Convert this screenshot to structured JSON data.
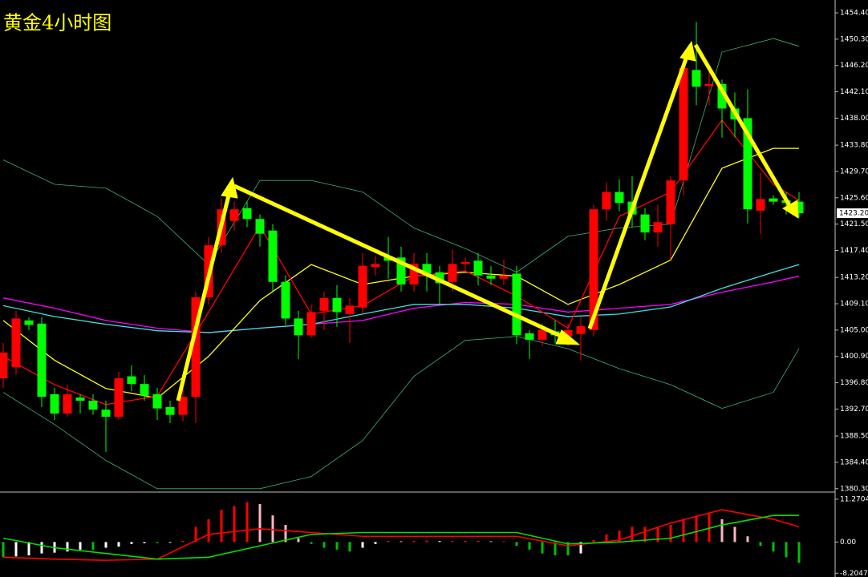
{
  "chart_data": [
    {
      "type": "candlestick",
      "title": "黄金4小时图",
      "up_color": "#ff0000",
      "down_color": "#00ff00",
      "open": [
        1397.5,
        1399.2,
        1406.5,
        1406,
        1395,
        1392,
        1394.5,
        1394,
        1392.6,
        1391.5,
        1397.8,
        1396.6,
        1395,
        1393,
        1391.8,
        1394.6,
        1410.1,
        1418.2,
        1422,
        1424,
        1422.3,
        1420.5,
        1412.5,
        1406.8,
        1404.2,
        1408,
        1410,
        1407.5,
        1408.5,
        1414.8,
        1416.5,
        1416.3,
        1412.1,
        1415.3,
        1414,
        1412.5,
        1415.3,
        1415.8,
        1413.5,
        1413,
        1413.8,
        1404.5,
        1403.5,
        1404.8,
        1404,
        1404.4,
        1405,
        1423.8,
        1426.5,
        1425,
        1423,
        1420.2,
        1421.5,
        1428.3,
        1445.5,
        1443,
        1443.3,
        1439.5,
        1438,
        1423.6,
        1425.5,
        1425.2,
        1425
      ],
      "high": [
        1403,
        1408,
        1407,
        1407,
        1396,
        1396.5,
        1395,
        1395,
        1394,
        1398.5,
        1399.5,
        1398,
        1396,
        1394,
        1396,
        1411,
        1419.5,
        1425.5,
        1425,
        1425,
        1423,
        1421.5,
        1413.5,
        1408,
        1409,
        1411,
        1412,
        1410,
        1417,
        1416.5,
        1419.5,
        1418,
        1417,
        1417,
        1415,
        1417.5,
        1416.3,
        1417,
        1415,
        1416,
        1415,
        1405,
        1406,
        1406.5,
        1406,
        1407,
        1424.5,
        1428,
        1428.5,
        1429,
        1424,
        1424.5,
        1429,
        1448,
        1453,
        1446,
        1444,
        1442,
        1442.5,
        1429.5,
        1426,
        1426.5,
        1426.5
      ],
      "low": [
        1396,
        1398,
        1405,
        1393,
        1391,
        1391.5,
        1392,
        1391.8,
        1386,
        1391,
        1395.5,
        1394,
        1391,
        1390.5,
        1390.8,
        1390.5,
        1409,
        1417,
        1420.5,
        1421,
        1418,
        1411,
        1405.8,
        1400.5,
        1403.8,
        1405,
        1405.5,
        1403,
        1407.5,
        1413.5,
        1413,
        1411,
        1411,
        1411,
        1409,
        1411,
        1414,
        1412,
        1412,
        1412,
        1402.8,
        1400.5,
        1402.5,
        1403,
        1402.5,
        1400.3,
        1404,
        1422,
        1423.5,
        1421,
        1419,
        1418,
        1416,
        1426,
        1440,
        1440,
        1435,
        1435,
        1421.6,
        1420,
        1424.5,
        1423,
        1422.5
      ],
      "close": [
        1401.5,
        1406.8,
        1405.8,
        1394.6,
        1392,
        1395,
        1394,
        1392.6,
        1391.5,
        1397.5,
        1396.6,
        1394.8,
        1392.8,
        1391.8,
        1394.6,
        1410.1,
        1418.2,
        1423.8,
        1423.8,
        1422.3,
        1420,
        1412.5,
        1406.8,
        1404.2,
        1407.8,
        1410,
        1407.8,
        1408.8,
        1415,
        1415.3,
        1415.8,
        1412.1,
        1415.3,
        1413.8,
        1412.3,
        1415.3,
        1415.6,
        1413.5,
        1413,
        1413.5,
        1404.2,
        1403.5,
        1405,
        1404.2,
        1405,
        1405.6,
        1423.8,
        1426.5,
        1424.8,
        1423,
        1420.2,
        1421.8,
        1428.3,
        1445.8,
        1442.9,
        1443.3,
        1439.5,
        1437.8,
        1423.8,
        1425.4,
        1425,
        1424.8,
        1423.2
      ],
      "line_x": [
        0,
        4,
        8,
        12,
        16,
        20,
        24,
        28,
        32,
        36,
        40,
        44,
        48,
        52,
        56,
        60,
        62
      ],
      "overlays": [
        {
          "color": "#3cb371",
          "values": [
            1431.5,
            1427.7,
            1427.1,
            1422.7,
            1415.2,
            1428.3,
            1428.3,
            1426.5,
            1420.9,
            1417.7,
            1414,
            1419.6,
            1420.9,
            1421.5,
            1448.3,
            1450.4,
            1449.2
          ]
        },
        {
          "color": "#3cb371",
          "values": [
            1395.3,
            1390.3,
            1384.7,
            1380.3,
            1380.3,
            1380.3,
            1382.2,
            1387.8,
            1397.8,
            1403.4,
            1404,
            1402.1,
            1399,
            1396.5,
            1392.8,
            1395.3,
            1402.1
          ]
        },
        {
          "color": "#ff00ff",
          "values": [
            1410,
            1408.4,
            1406.5,
            1405.3,
            1404.6,
            1405.3,
            1405.9,
            1406.5,
            1408.4,
            1409.3,
            1409,
            1407.8,
            1408.4,
            1409,
            1410.9,
            1412.5,
            1413.4
          ]
        },
        {
          "color": "#40e0e0",
          "values": [
            1408.8,
            1407.1,
            1405.9,
            1404.9,
            1404.6,
            1405.3,
            1405.9,
            1407.5,
            1409,
            1409,
            1408.4,
            1407.1,
            1407.5,
            1408.6,
            1411.5,
            1414,
            1415.2
          ]
        },
        {
          "color": "#ffff00",
          "values": [
            1406.5,
            1400.3,
            1395.9,
            1394.4,
            1400.9,
            1409.6,
            1415.2,
            1412.1,
            1413.4,
            1414,
            1413.4,
            1409,
            1412.1,
            1415.9,
            1430.2,
            1433.3,
            1433.3
          ]
        },
        {
          "color": "#ff0000",
          "values": [
            1400.9,
            1396.5,
            1393.4,
            1394.7,
            1407.8,
            1421.2,
            1407.5,
            1408.8,
            1413.4,
            1414.2,
            1410.3,
            1405.3,
            1422.7,
            1426.5,
            1437.7,
            1427.7,
            1425.2
          ]
        }
      ],
      "last_price": {
        "value": 1423.2,
        "label": "1423.20"
      },
      "ylim": [
        1379.9,
        1456.4
      ],
      "yticks": [
        {
          "value": 1380.3,
          "label": "1380.30"
        },
        {
          "value": 1384.4,
          "label": "1384.40"
        },
        {
          "value": 1388.5,
          "label": "1388.50"
        },
        {
          "value": 1392.7,
          "label": "1392.70"
        },
        {
          "value": 1396.8,
          "label": "1396.80"
        },
        {
          "value": 1400.9,
          "label": "1400.90"
        },
        {
          "value": 1405,
          "label": "1405.00"
        },
        {
          "value": 1409.1,
          "label": "1409.10"
        },
        {
          "value": 1413.2,
          "label": "1413.20"
        },
        {
          "value": 1417.4,
          "label": "1417.40"
        },
        {
          "value": 1421.5,
          "label": "1421.50"
        },
        {
          "value": 1425.6,
          "label": "1425.60"
        },
        {
          "value": 1429.7,
          "label": "1429.70"
        },
        {
          "value": 1433.8,
          "label": "1433.80"
        },
        {
          "value": 1438,
          "label": "1438.00"
        },
        {
          "value": 1442.1,
          "label": "1442.10"
        },
        {
          "value": 1446.2,
          "label": "1446.20"
        },
        {
          "value": 1450.3,
          "label": "1450.30"
        },
        {
          "value": 1454.4,
          "label": "1454.40"
        }
      ]
    },
    {
      "type": "macd",
      "values": [
        -4,
        -3.8,
        -3.5,
        -3,
        -2.8,
        -2.5,
        -2,
        -2,
        -1.5,
        -1.2,
        -0.5,
        -0.3,
        -0.3,
        -0.2,
        0.3,
        4,
        6,
        8.5,
        9.5,
        10.5,
        10,
        7,
        4.5,
        1,
        -0.5,
        -1.5,
        -2,
        -2.5,
        -1.5,
        -0.5,
        0.3,
        0.2,
        0.3,
        0.4,
        0.3,
        0.3,
        0.3,
        0.3,
        0.2,
        0.2,
        -1,
        -2,
        -3,
        -3.5,
        -3.5,
        -3,
        0.5,
        2,
        3,
        4,
        4,
        4,
        4.5,
        6,
        7,
        7.5,
        6,
        4,
        1.5,
        -1,
        -2.5,
        -4,
        -5.5
      ],
      "bar_colors": {
        "pos_rising": "#ff0000",
        "pos_falling": "#ffb6c1",
        "neg_falling": "#00c000",
        "neg_rising": "#ffffff"
      },
      "line_x": [
        0,
        4,
        8,
        12,
        16,
        20,
        24,
        28,
        32,
        36,
        40,
        44,
        48,
        52,
        56,
        60,
        62
      ],
      "series": [
        {
          "color": "#ff0000",
          "values": [
            -4,
            -4.5,
            -4.8,
            -4.5,
            2,
            3.5,
            2.5,
            1.5,
            1.5,
            1.5,
            1.5,
            -1,
            0.5,
            5,
            8.5,
            6,
            4
          ]
        },
        {
          "color": "#00e000",
          "values": [
            1,
            -1.5,
            -3,
            -4.5,
            -4,
            -1,
            2,
            2.5,
            2.5,
            2.5,
            2.5,
            -0.5,
            0,
            1,
            4.5,
            7,
            7
          ]
        }
      ],
      "ylim": [
        -9.2,
        12.94
      ],
      "yticks": [
        -8.2047,
        {
          "value": 0,
          "label": "0.00"
        },
        11.2704
      ]
    }
  ]
}
